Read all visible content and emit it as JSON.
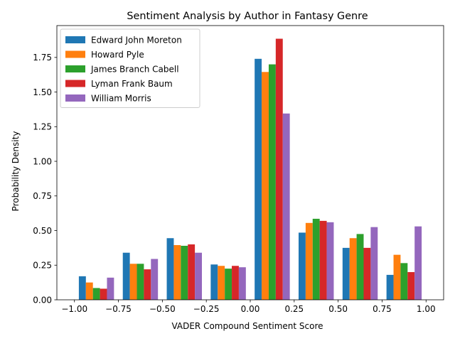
{
  "chart_data": {
    "type": "bar",
    "title": "Sentiment Analysis by Author in Fantasy Genre",
    "xlabel": "VADER Compound Sentiment Score",
    "ylabel": "Probability Density",
    "xlim": [
      -1.1,
      1.1
    ],
    "ylim": [
      0,
      1.98
    ],
    "x_ticks": [
      -1.0,
      -0.75,
      -0.5,
      -0.25,
      0.0,
      0.25,
      0.5,
      0.75,
      1.0
    ],
    "x_tick_labels": [
      "−1.00",
      "−0.75",
      "−0.50",
      "−0.25",
      "0.00",
      "0.25",
      "0.50",
      "0.75",
      "1.00"
    ],
    "y_ticks": [
      0,
      0.25,
      0.5,
      0.75,
      1.0,
      1.25,
      1.5,
      1.75
    ],
    "y_tick_labels": [
      "0.00",
      "0.25",
      "0.50",
      "0.75",
      "1.00",
      "1.25",
      "1.50",
      "1.75"
    ],
    "bin_width": 0.25,
    "bin_centers": [
      -0.875,
      -0.625,
      -0.375,
      -0.125,
      0.125,
      0.375,
      0.625,
      0.875
    ],
    "grid": false,
    "legend_position": "top-left",
    "series": [
      {
        "name": "Edward John Moreton",
        "color": "#1f77b4",
        "values": [
          0.17,
          0.34,
          0.445,
          0.255,
          1.74,
          0.485,
          0.375,
          0.18
        ]
      },
      {
        "name": "Howard Pyle",
        "color": "#ff7f0e",
        "values": [
          0.125,
          0.26,
          0.395,
          0.245,
          1.645,
          0.555,
          0.445,
          0.325
        ]
      },
      {
        "name": "James Branch Cabell",
        "color": "#2ca02c",
        "values": [
          0.085,
          0.26,
          0.39,
          0.225,
          1.7,
          0.585,
          0.475,
          0.265
        ]
      },
      {
        "name": "Lyman Frank Baum",
        "color": "#d62728",
        "values": [
          0.08,
          0.22,
          0.4,
          0.245,
          1.885,
          0.57,
          0.375,
          0.2
        ]
      },
      {
        "name": "William Morris",
        "color": "#9467bd",
        "values": [
          0.16,
          0.295,
          0.34,
          0.235,
          1.345,
          0.56,
          0.525,
          0.53
        ]
      }
    ]
  }
}
